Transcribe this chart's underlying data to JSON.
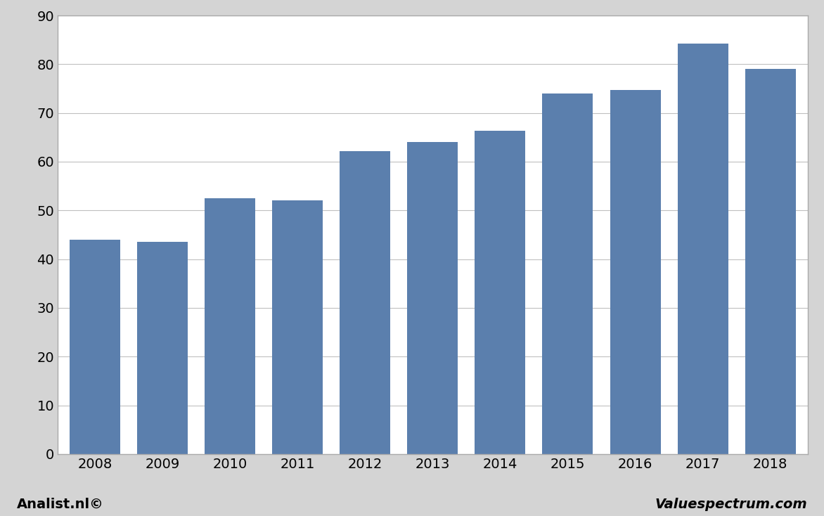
{
  "years": [
    2008,
    2009,
    2010,
    2011,
    2012,
    2013,
    2014,
    2015,
    2016,
    2017,
    2018
  ],
  "values": [
    44.0,
    43.5,
    52.5,
    52.0,
    62.2,
    64.0,
    66.3,
    74.0,
    74.7,
    84.2,
    79.0
  ],
  "bar_color": "#5b7fad",
  "background_color": "#d4d4d4",
  "plot_background_color": "#ffffff",
  "ylim": [
    0,
    90
  ],
  "yticks": [
    0,
    10,
    20,
    30,
    40,
    50,
    60,
    70,
    80,
    90
  ],
  "grid_color": "#c0c0c0",
  "footer_left": "Analist.nl©",
  "footer_right": "Valuespectrum.com",
  "footer_fontsize": 14,
  "bar_width": 0.75,
  "spine_color": "#aaaaaa",
  "tick_fontsize": 14
}
